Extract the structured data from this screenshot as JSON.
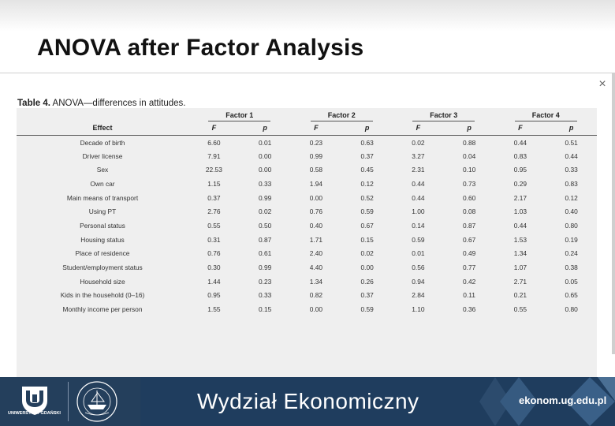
{
  "slide": {
    "title": "ANOVA after Factor Analysis"
  },
  "table": {
    "caption_bold": "Table 4.",
    "caption_rest": " ANOVA—differences in attitudes.",
    "factor_headers": [
      "Factor 1",
      "Factor 2",
      "Factor 3",
      "Factor 4"
    ],
    "effect_header": "Effect",
    "stat_headers": [
      "F",
      "p",
      "F",
      "p",
      "F",
      "p",
      "F",
      "p"
    ],
    "rows": [
      {
        "effect": "Decade of birth",
        "values": [
          "6.60",
          "0.01",
          "0.23",
          "0.63",
          "0.02",
          "0.88",
          "0.44",
          "0.51"
        ]
      },
      {
        "effect": "Driver license",
        "values": [
          "7.91",
          "0.00",
          "0.99",
          "0.37",
          "3.27",
          "0.04",
          "0.83",
          "0.44"
        ]
      },
      {
        "effect": "Sex",
        "values": [
          "22.53",
          "0.00",
          "0.58",
          "0.45",
          "2.31",
          "0.10",
          "0.95",
          "0.33"
        ]
      },
      {
        "effect": "Own car",
        "values": [
          "1.15",
          "0.33",
          "1.94",
          "0.12",
          "0.44",
          "0.73",
          "0.29",
          "0.83"
        ]
      },
      {
        "effect": "Main means of transport",
        "values": [
          "0.37",
          "0.99",
          "0.00",
          "0.52",
          "0.44",
          "0.60",
          "2.17",
          "0.12"
        ]
      },
      {
        "effect": "Using PT",
        "values": [
          "2.76",
          "0.02",
          "0.76",
          "0.59",
          "1.00",
          "0.08",
          "1.03",
          "0.40"
        ]
      },
      {
        "effect": "Personal status",
        "values": [
          "0.55",
          "0.50",
          "0.40",
          "0.67",
          "0.14",
          "0.87",
          "0.44",
          "0.80"
        ]
      },
      {
        "effect": "Housing status",
        "values": [
          "0.31",
          "0.87",
          "1.71",
          "0.15",
          "0.59",
          "0.67",
          "1.53",
          "0.19"
        ]
      },
      {
        "effect": "Place of residence",
        "values": [
          "0.76",
          "0.61",
          "2.40",
          "0.02",
          "0.01",
          "0.49",
          "1.34",
          "0.24"
        ]
      },
      {
        "effect": "Student/employment status",
        "values": [
          "0.30",
          "0.99",
          "4.40",
          "0.00",
          "0.56",
          "0.77",
          "1.07",
          "0.38"
        ]
      },
      {
        "effect": "Household size",
        "values": [
          "1.44",
          "0.23",
          "1.34",
          "0.26",
          "0.94",
          "0.42",
          "2.71",
          "0.05"
        ]
      },
      {
        "effect": "Kids in the household (0–16)",
        "values": [
          "0.95",
          "0.33",
          "0.82",
          "0.37",
          "2.84",
          "0.11",
          "0.21",
          "0.65"
        ]
      },
      {
        "effect": "Monthly income per person",
        "values": [
          "1.55",
          "0.15",
          "0.00",
          "0.59",
          "1.10",
          "0.36",
          "0.55",
          "0.80"
        ]
      }
    ]
  },
  "dialog": {
    "close_glyph": "×"
  },
  "footer": {
    "ug_logo_text": "UNIWERSYTET GDAŃSKI",
    "faculty_name": "Wydział Ekonomiczny",
    "url": "ekonom.ug.edu.pl"
  },
  "colors": {
    "footer_bg": "#1f3d5e",
    "accent": "#4a6f94"
  }
}
